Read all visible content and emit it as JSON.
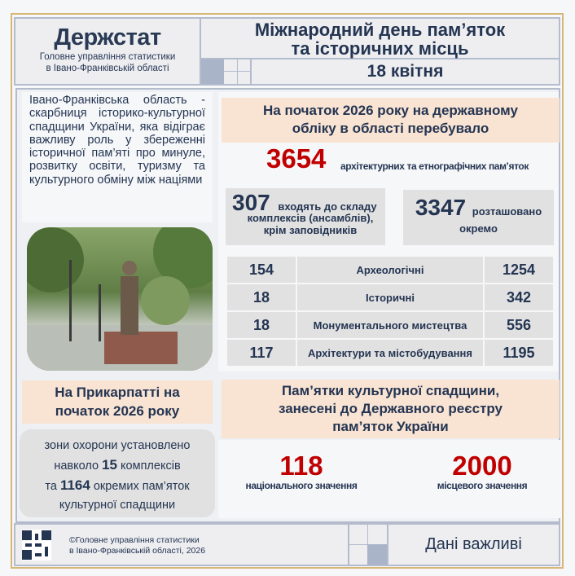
{
  "header": {
    "logo": "Держстат",
    "org_line1": "Головне управління статистики",
    "org_line2": "в Івано-Франківській області",
    "title_line1": "Міжнародний день пам’яток",
    "title_line2": "та історичних місць",
    "date": "18 квітня"
  },
  "intro": "Івано-Франківська область - скарбниця історико-культурної спадщини України, яка відіграє важливу роль у збереженні історичної пам’яті про минуле, розвитку освіти, туризму та культурного обміну між націями",
  "registry": {
    "heading_line1": "На початок  2026  року на державному",
    "heading_line2": "обліку  в  області  перебувало",
    "total": "3654",
    "total_label": "архітектурних та етнографічних пам’яток",
    "in_complexes": {
      "value": "307",
      "label_line1": "входять до складу",
      "label_line2": "комплексів (ансамблів),",
      "label_line3": "крім заповідників"
    },
    "separate": {
      "value": "3347",
      "label_line1": "розташовано",
      "label_line2": "окремо"
    },
    "rows": [
      {
        "left": "154",
        "label": "Археологічні",
        "right": "1254"
      },
      {
        "left": "18",
        "label": "Історичні",
        "right": "342"
      },
      {
        "left": "18",
        "label": "Монументального мистецтва",
        "right": "556"
      },
      {
        "left": "117",
        "label": "Архітектури та містобудування",
        "right": "1195"
      }
    ]
  },
  "zones": {
    "heading_line1": "На Прикарпатті на",
    "heading_line2": "початок 2026 року",
    "line1": "зони охорони установлено",
    "l2a": "навколо ",
    "l2b": "15",
    "l2c": " комплексів",
    "l3a": "та ",
    "l3b": "1164",
    "l3c": " окремих пам’яток",
    "line4": "культурної спадщини"
  },
  "state_register": {
    "heading_line1": "Пам’ятки культурної спадщини,",
    "heading_line2": "занесені до Державного реєстру",
    "heading_line3": "пам’яток України",
    "national": "118",
    "national_label": "національного значення",
    "local": "2000",
    "local_label": "місцевого значення"
  },
  "footer": {
    "copyright_line1": "©Головне управління статистики",
    "copyright_line2": "в Івано-Франківській області, 2026",
    "tagline": "Дані важливі"
  },
  "colors": {
    "accent_red": "#c00000",
    "navy": "#243552",
    "peach": "#f9e3d3",
    "gold_border": "#d8b676"
  }
}
